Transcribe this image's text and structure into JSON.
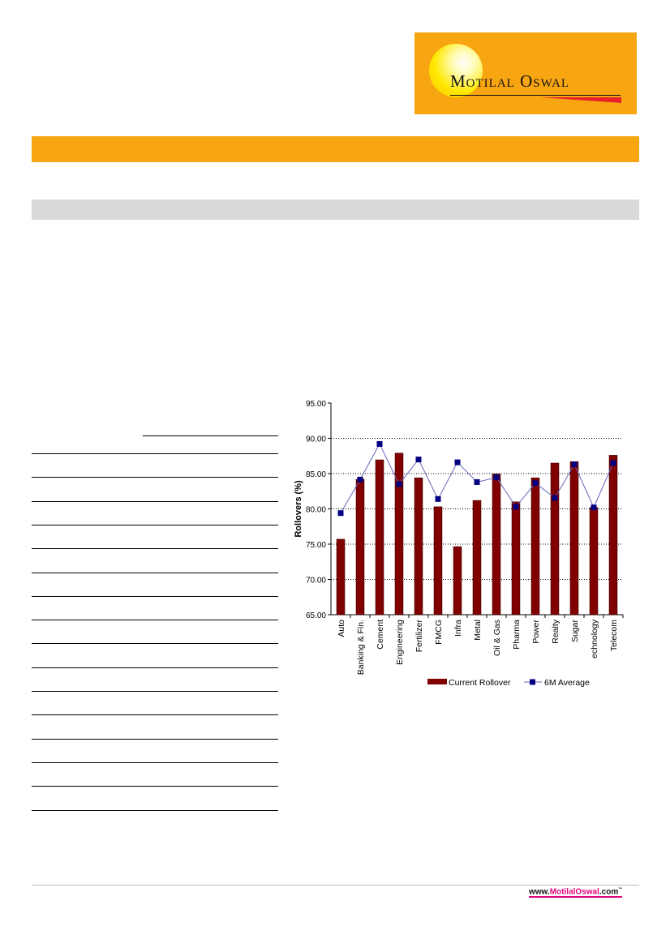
{
  "logo": {
    "text": "Motilal Oswal",
    "colors": {
      "background": "#f8a512",
      "swoosh": "#e8202a"
    }
  },
  "footer": {
    "url_prefix": "www.",
    "url_brand": "MotilalOswal",
    "url_suffix": ".com",
    "tm": "™"
  },
  "chart_data": {
    "type": "bar+line",
    "title": "",
    "xlabel": "",
    "ylabel": "Rollovers  (%)",
    "ylim": [
      65,
      95
    ],
    "yticks": [
      "65.00",
      "70.00",
      "75.00",
      "80.00",
      "85.00",
      "90.00",
      "95.00"
    ],
    "grid": "horizontal dotted",
    "legend": "bottom",
    "categories": [
      "Auto",
      "Banking & Fin.",
      "Cement",
      "Engineering",
      "Fertilizer",
      "FMCG",
      "Infra",
      "Metal",
      "Oil & Gas",
      "Pharma",
      "Power",
      "Realty",
      "Sugar",
      "echnology",
      "Telecom"
    ],
    "series": [
      {
        "name": "Current Rollover",
        "type": "bar",
        "color": "#800000",
        "values": [
          75.7,
          84.2,
          86.95,
          87.9,
          84.4,
          80.3,
          74.65,
          81.2,
          84.95,
          81.0,
          84.4,
          86.5,
          86.7,
          80.2,
          87.6
        ]
      },
      {
        "name": "6M Average",
        "type": "line",
        "color": "#000080",
        "line_color": "#6666bb",
        "values": [
          79.4,
          84.15,
          89.2,
          83.5,
          87.0,
          81.4,
          86.6,
          83.8,
          84.45,
          80.3,
          83.65,
          81.55,
          86.3,
          80.2,
          86.5
        ]
      }
    ]
  }
}
